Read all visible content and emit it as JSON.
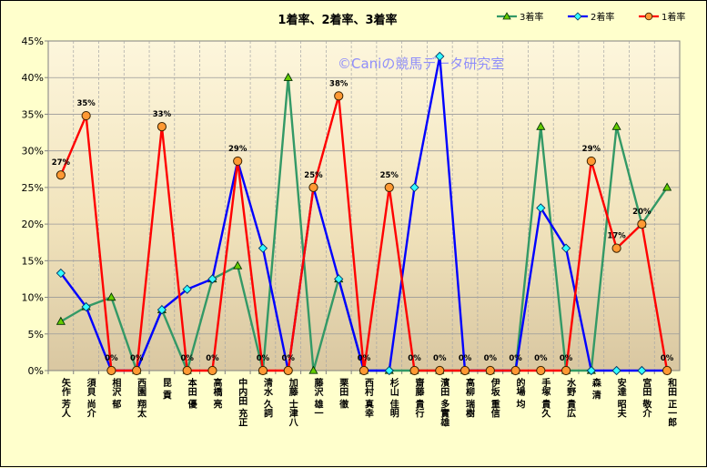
{
  "chart_data": {
    "type": "line",
    "title": "1着率、2着率、3着率",
    "watermark": "©Caniの競馬データ研究室",
    "ylim": [
      0,
      45
    ],
    "yticks": [
      0,
      5,
      10,
      15,
      20,
      25,
      30,
      35,
      40,
      45
    ],
    "ytick_suffix": "%",
    "legend_position": "top-right",
    "grid": true,
    "categories": [
      "矢作 芳人",
      "須貝 尚介",
      "相沢 郁",
      "西園 翔太",
      "昆 貢",
      "本田 優",
      "高橋 亮",
      "中内田 充正",
      "清水 久詞",
      "加藤 士津八",
      "藤沢 雄一",
      "栗田 徹",
      "西村 真幸",
      "杉山 佳明",
      "齋藤 貴行",
      "濱田 多實雄",
      "高柳 瑞樹",
      "伊坂 重信",
      "的場 均",
      "手塚 貴久",
      "水野 貴広",
      "森 清",
      "安達 昭夫",
      "宮田 敬介",
      "和田 正一郎"
    ],
    "series": [
      {
        "name": "3着率",
        "color": "#339966",
        "marker": "triangle",
        "values": [
          6.7,
          8.7,
          10,
          0,
          8.3,
          0,
          12.5,
          14.3,
          0,
          40,
          0,
          12.5,
          0,
          0,
          0,
          0,
          0,
          0,
          0,
          33.3,
          0,
          0,
          33.3,
          20,
          25
        ]
      },
      {
        "name": "2着率",
        "color": "#0000ff",
        "marker": "diamond",
        "values": [
          13.3,
          8.7,
          0,
          0,
          8.3,
          11.1,
          12.5,
          28.6,
          16.7,
          0,
          25,
          12.5,
          0,
          0,
          25,
          42.9,
          0,
          0,
          0,
          22.2,
          16.7,
          0,
          0,
          0,
          0
        ]
      },
      {
        "name": "1着率",
        "color": "#ff0000",
        "marker": "circle",
        "values": [
          26.7,
          34.8,
          0,
          0,
          33.3,
          0,
          0,
          28.6,
          0,
          0,
          25,
          37.5,
          0,
          25,
          0,
          0,
          0,
          0,
          0,
          0,
          0,
          28.6,
          16.7,
          20,
          0
        ],
        "labels": [
          "27%",
          "35%",
          "0%",
          "0%",
          "33%",
          "0%",
          "0%",
          "29%",
          "0%",
          "0%",
          "25%",
          "38%",
          "0%",
          "25%",
          "0%",
          "0%",
          "0%",
          "0%",
          "0%",
          "0%",
          "0%",
          "29%",
          "17%",
          "20%",
          "0%"
        ]
      }
    ]
  }
}
